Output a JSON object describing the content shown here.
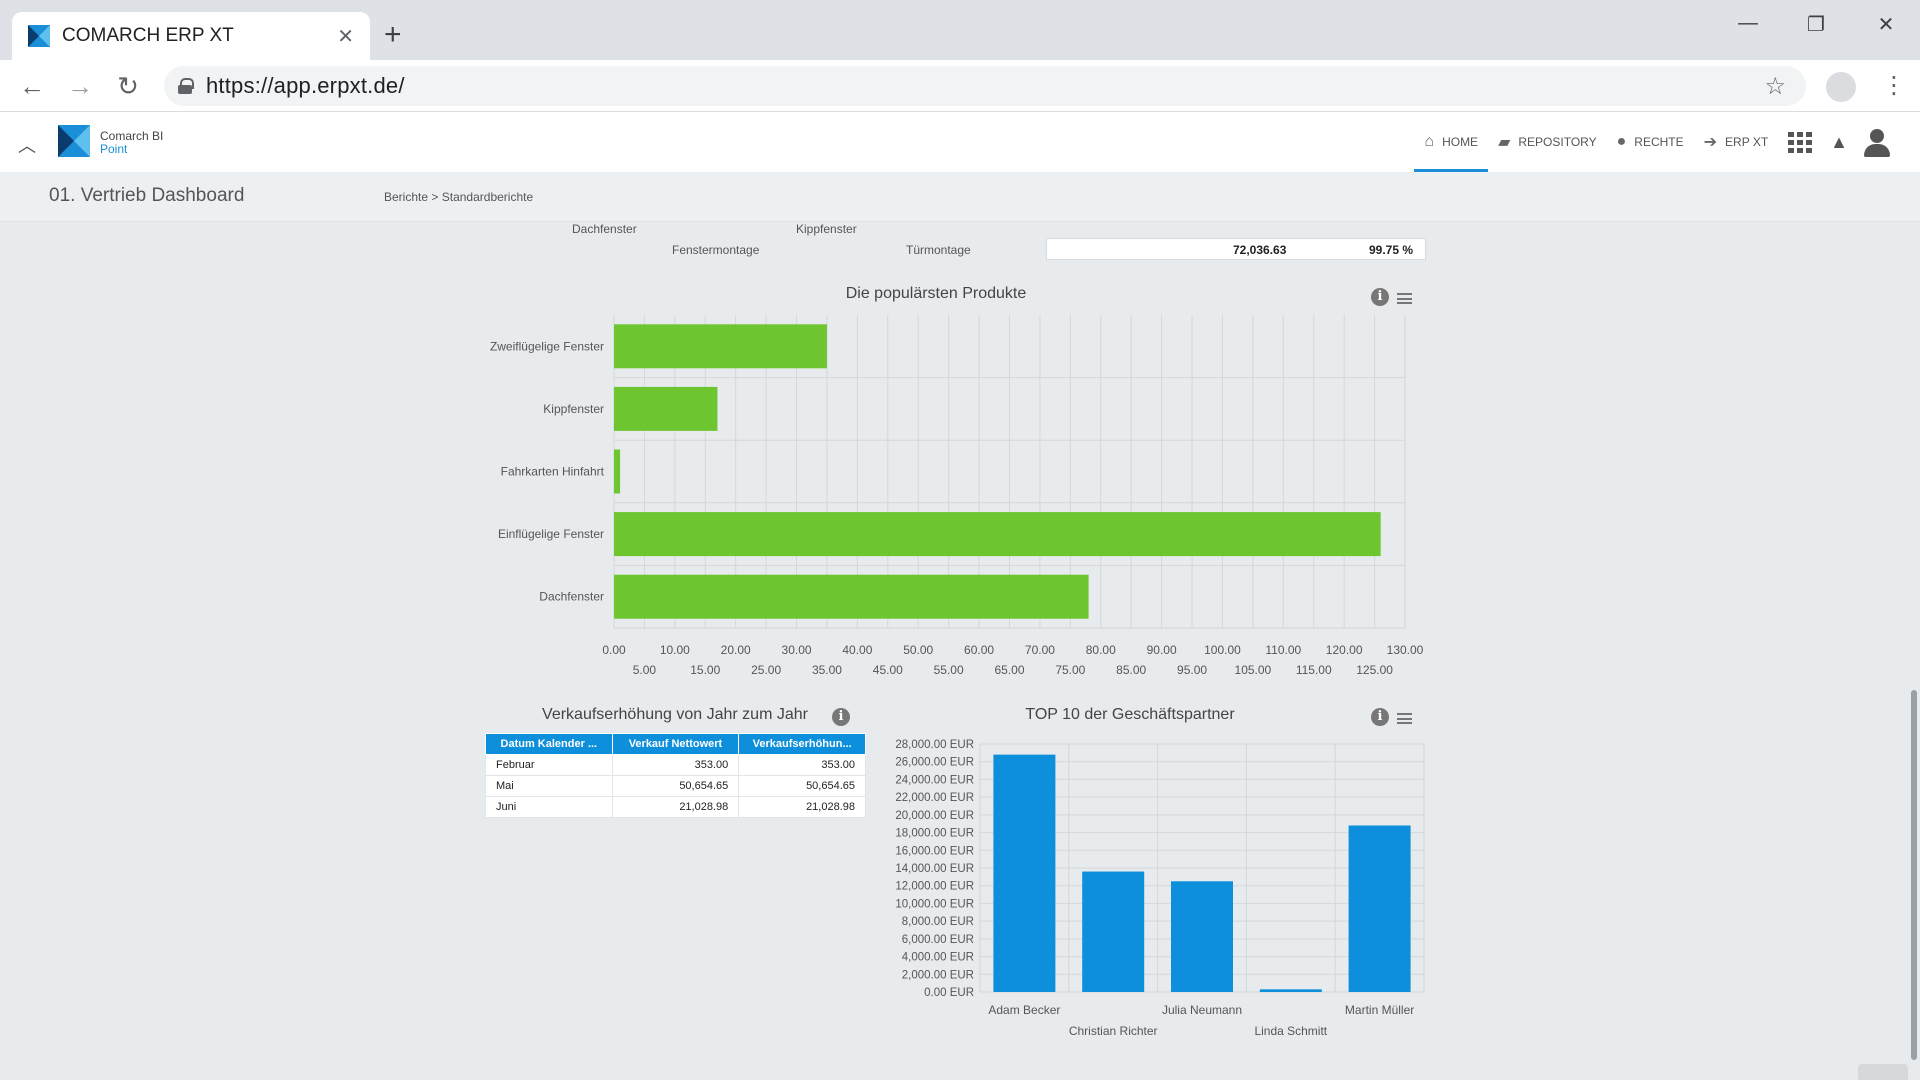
{
  "browser": {
    "tab_title": "COMARCH ERP XT",
    "url": "https://app.erpxt.de/",
    "new_tab_symbol": "+",
    "close_symbol": "✕"
  },
  "app": {
    "brand_line1": "Comarch BI",
    "brand_line2": "Point",
    "nav": [
      {
        "label": "HOME",
        "icon": "home-icon",
        "active": true
      },
      {
        "label": "REPOSITORY",
        "icon": "folder-open-icon",
        "active": false
      },
      {
        "label": "RECHTE",
        "icon": "users-icon",
        "active": false
      },
      {
        "label": "ERP XT",
        "icon": "arrow-right-icon",
        "active": false
      }
    ],
    "accent_color": "#1a8fd8"
  },
  "subheader": {
    "page_title": "01. Vertrieb Dashboard",
    "breadcrumb_1": "Berichte",
    "breadcrumb_sep": ">",
    "breadcrumb_2": "Standardberichte"
  },
  "top_remnant": {
    "labels_row1": [
      "Dachfenster",
      "Kippfenster"
    ],
    "labels_row2": [
      "Fenstermontage",
      "Türmontage"
    ],
    "value": "72,036.63",
    "percent": "99.75 %"
  },
  "chart_data": [
    {
      "type": "bar",
      "orientation": "horizontal",
      "title": "Die populärsten Produkte",
      "categories": [
        "Zweiflügelige Fenster",
        "Kippfenster",
        "Fahrkarten Hinfahrt",
        "Einflügelige Fenster",
        "Dachfenster"
      ],
      "values": [
        35,
        17,
        1,
        126,
        78
      ],
      "xlim": [
        0,
        130
      ],
      "tick_labels_top": [
        "0.00",
        "10.00",
        "20.00",
        "30.00",
        "40.00",
        "50.00",
        "60.00",
        "70.00",
        "80.00",
        "90.00",
        "100.00",
        "110.00",
        "120.00",
        "130.00"
      ],
      "tick_labels_bottom": [
        "5.00",
        "15.00",
        "25.00",
        "35.00",
        "45.00",
        "55.00",
        "65.00",
        "75.00",
        "85.00",
        "95.00",
        "105.00",
        "115.00",
        "125.00"
      ],
      "grid": true,
      "color": "#6dc62f"
    },
    {
      "type": "bar",
      "orientation": "vertical",
      "title": "TOP 10 der Geschäftspartner",
      "categories": [
        "Adam Becker",
        "Christian Richter",
        "Julia Neumann",
        "Linda Schmitt",
        "Martin Müller"
      ],
      "values": [
        26800,
        13600,
        12500,
        300,
        18800
      ],
      "ylim": [
        0,
        28000
      ],
      "tick_labels": [
        "0.00 EUR",
        "2,000.00 EUR",
        "4,000.00 EUR",
        "6,000.00 EUR",
        "8,000.00 EUR",
        "10,000.00 EUR",
        "12,000.00 EUR",
        "14,000.00 EUR",
        "16,000.00 EUR",
        "18,000.00 EUR",
        "20,000.00 EUR",
        "22,000.00 EUR",
        "24,000.00 EUR",
        "26,000.00 EUR",
        "28,000.00 EUR"
      ],
      "grid": true,
      "color": "#0e8fdc"
    }
  ],
  "table_widget": {
    "title": "Verkaufserhöhung von Jahr zum Jahr",
    "headers": [
      "Datum Kalender ...",
      "Verkauf Nettowert",
      "Verkaufserhöhun..."
    ],
    "rows": [
      [
        "Februar",
        "353.00",
        "353.00"
      ],
      [
        "Mai",
        "50,654.65",
        "50,654.65"
      ],
      [
        "Juni",
        "21,028.98",
        "21,028.98"
      ]
    ]
  },
  "icons": {
    "info": "i",
    "home": "⌂",
    "folder": "▰",
    "users": "●",
    "arrow": "➔",
    "bell": "🔔",
    "chevron_up": "⌃"
  }
}
